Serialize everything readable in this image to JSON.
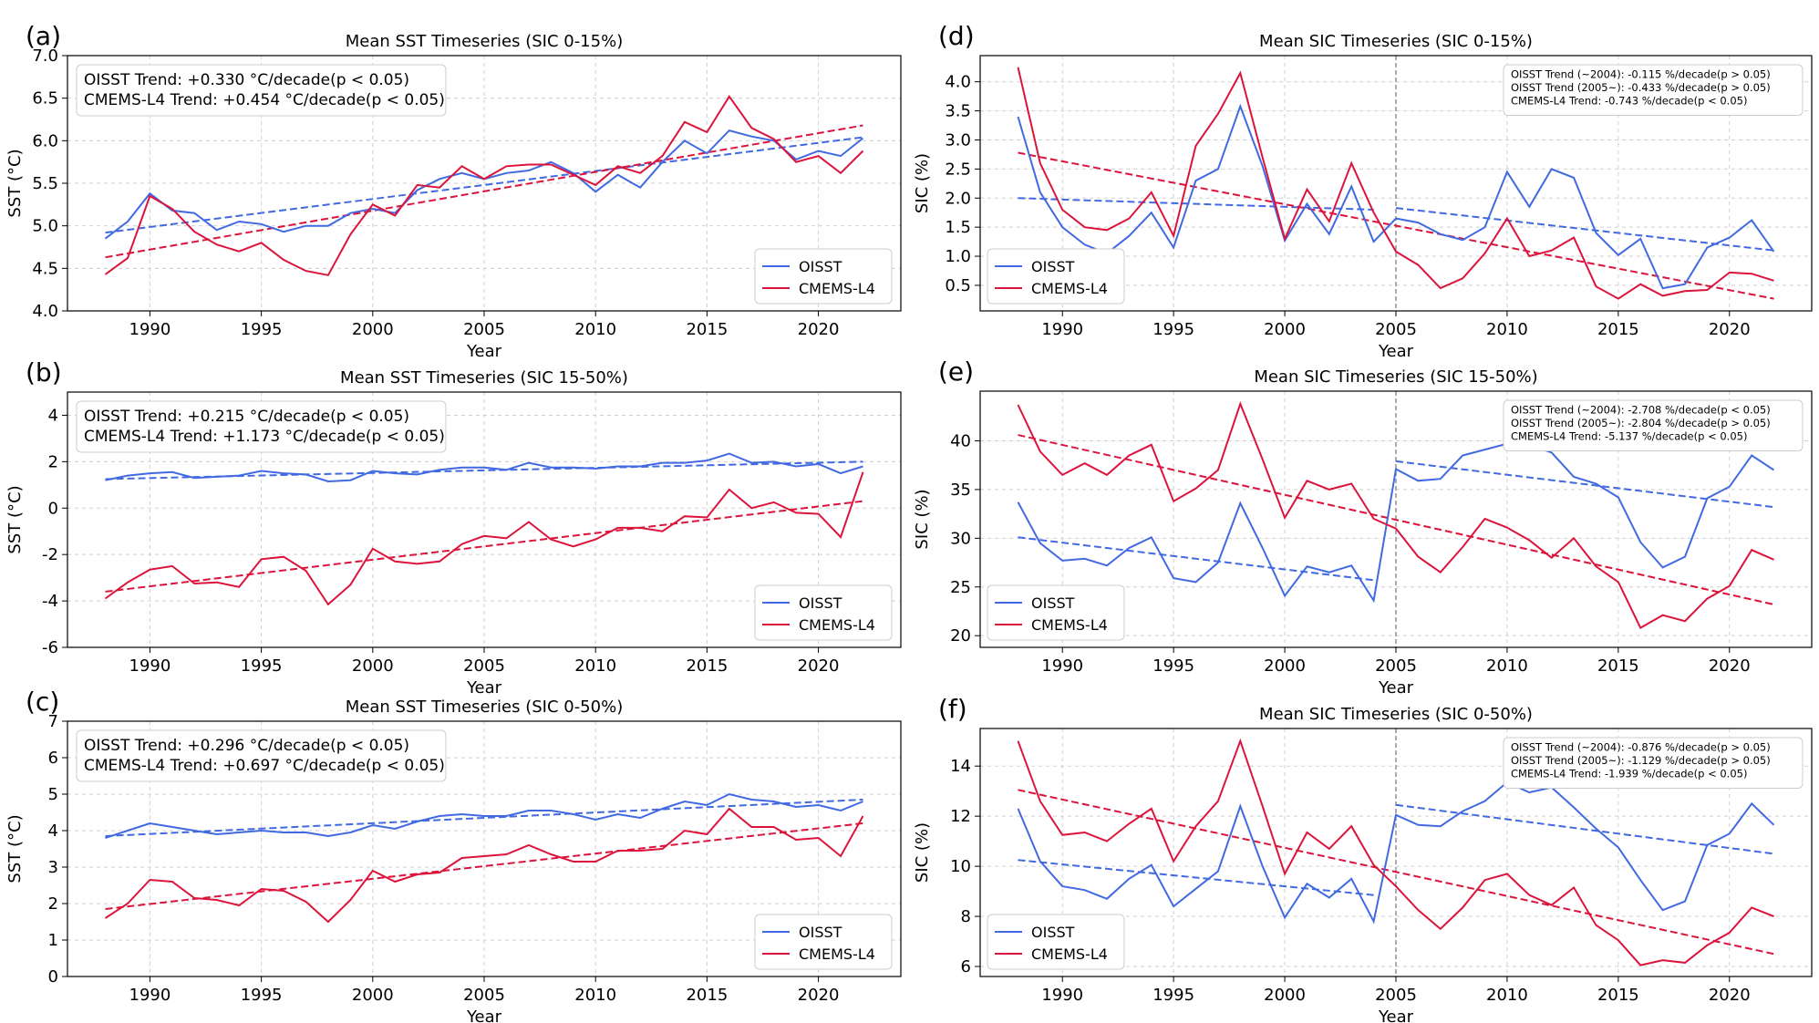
{
  "colors": {
    "oisst": "#4169e1",
    "cmems": "#dc143c",
    "grid": "#d0d0d0",
    "vline": "#808080"
  },
  "years": [
    1988,
    1989,
    1990,
    1991,
    1992,
    1993,
    1994,
    1995,
    1996,
    1997,
    1998,
    1999,
    2000,
    2001,
    2002,
    2003,
    2004,
    2005,
    2006,
    2007,
    2008,
    2009,
    2010,
    2011,
    2012,
    2013,
    2014,
    2015,
    2016,
    2017,
    2018,
    2019,
    2020,
    2021,
    2022
  ],
  "chart_data": [
    {
      "panel": "(a)",
      "type": "line",
      "title": "Mean SST Timeseries (SIC 0-15%)",
      "xlabel": "Year",
      "ylabel": "SST (°C)",
      "xlim": [
        1986.3,
        2023.7
      ],
      "ylim": [
        4.0,
        7.0
      ],
      "xticks": [
        1990,
        1995,
        2000,
        2005,
        2010,
        2015,
        2020
      ],
      "yticks": [
        4.0,
        4.5,
        5.0,
        5.5,
        6.0,
        6.5,
        7.0
      ],
      "ydec": 1,
      "legend": "lower-right",
      "annotation": "top-left",
      "annotation_lines": [
        "OISST Trend: +0.330 °C/decade(p < 0.05)",
        "CMEMS-L4 Trend: +0.454 °C/decade(p < 0.05)"
      ],
      "series": [
        {
          "name": "OISST",
          "color": "oisst",
          "values": [
            4.85,
            5.05,
            5.38,
            5.18,
            5.15,
            4.95,
            5.05,
            5.02,
            4.93,
            5.0,
            5.0,
            5.15,
            5.2,
            5.15,
            5.42,
            5.55,
            5.62,
            5.55,
            5.62,
            5.65,
            5.75,
            5.62,
            5.4,
            5.6,
            5.45,
            5.75,
            6.0,
            5.85,
            6.12,
            6.05,
            6.0,
            5.78,
            5.88,
            5.82,
            6.03
          ]
        },
        {
          "name": "CMEMS-L4",
          "color": "cmems",
          "values": [
            4.43,
            4.62,
            5.35,
            5.2,
            4.93,
            4.78,
            4.7,
            4.8,
            4.6,
            4.47,
            4.42,
            4.9,
            5.25,
            5.12,
            5.48,
            5.45,
            5.7,
            5.55,
            5.7,
            5.72,
            5.72,
            5.6,
            5.48,
            5.7,
            5.62,
            5.82,
            6.22,
            6.1,
            6.52,
            6.15,
            6.02,
            5.75,
            5.82,
            5.62,
            5.88
          ]
        }
      ],
      "trends": [
        {
          "color": "oisst",
          "x": [
            1988,
            2022
          ],
          "y": [
            4.92,
            6.04
          ]
        },
        {
          "color": "cmems",
          "x": [
            1988,
            2022
          ],
          "y": [
            4.63,
            6.18
          ]
        }
      ]
    },
    {
      "panel": "(b)",
      "type": "line",
      "title": "Mean SST Timeseries (SIC 15-50%)",
      "xlabel": "Year",
      "ylabel": "SST (°C)",
      "xlim": [
        1986.3,
        2023.7
      ],
      "ylim": [
        -6,
        5
      ],
      "xticks": [
        1990,
        1995,
        2000,
        2005,
        2010,
        2015,
        2020
      ],
      "yticks": [
        -6,
        -4,
        -2,
        0,
        2,
        4
      ],
      "ydec": 0,
      "legend": "lower-right",
      "annotation": "top-left",
      "annotation_lines": [
        "OISST Trend: +0.215 °C/decade(p < 0.05)",
        "CMEMS-L4 Trend: +1.173 °C/decade(p < 0.05)"
      ],
      "series": [
        {
          "name": "OISST",
          "color": "oisst",
          "values": [
            1.2,
            1.4,
            1.5,
            1.55,
            1.3,
            1.35,
            1.4,
            1.6,
            1.5,
            1.45,
            1.15,
            1.2,
            1.6,
            1.5,
            1.45,
            1.65,
            1.75,
            1.75,
            1.65,
            1.95,
            1.75,
            1.75,
            1.7,
            1.8,
            1.8,
            1.95,
            1.95,
            2.05,
            2.35,
            1.95,
            2.0,
            1.8,
            1.9,
            1.5,
            1.8
          ]
        },
        {
          "name": "CMEMS-L4",
          "color": "cmems",
          "values": [
            -3.9,
            -3.2,
            -2.65,
            -2.5,
            -3.25,
            -3.2,
            -3.4,
            -2.2,
            -2.1,
            -2.7,
            -4.15,
            -3.3,
            -1.75,
            -2.3,
            -2.4,
            -2.3,
            -1.55,
            -1.2,
            -1.3,
            -0.6,
            -1.35,
            -1.65,
            -1.35,
            -0.85,
            -0.85,
            -1.0,
            -0.35,
            -0.4,
            0.8,
            0.0,
            0.25,
            -0.2,
            -0.25,
            -1.25,
            1.55
          ]
        }
      ],
      "trends": [
        {
          "color": "oisst",
          "x": [
            1988,
            2022
          ],
          "y": [
            1.25,
            2.0
          ]
        },
        {
          "color": "cmems",
          "x": [
            1988,
            2022
          ],
          "y": [
            -3.6,
            0.3
          ]
        }
      ]
    },
    {
      "panel": "(c)",
      "type": "line",
      "title": "Mean SST Timeseries (SIC 0-50%)",
      "xlabel": "Year",
      "ylabel": "SST (°C)",
      "xlim": [
        1986.3,
        2023.7
      ],
      "ylim": [
        0,
        7
      ],
      "xticks": [
        1990,
        1995,
        2000,
        2005,
        2010,
        2015,
        2020
      ],
      "yticks": [
        0,
        1,
        2,
        3,
        4,
        5,
        6,
        7
      ],
      "ydec": 0,
      "legend": "lower-right",
      "annotation": "top-left",
      "annotation_lines": [
        "OISST Trend: +0.296 °C/decade(p < 0.05)",
        "CMEMS-L4 Trend: +0.697 °C/decade(p < 0.05)"
      ],
      "series": [
        {
          "name": "OISST",
          "color": "oisst",
          "values": [
            3.8,
            4.0,
            4.2,
            4.1,
            4.0,
            3.9,
            3.95,
            4.0,
            3.95,
            3.95,
            3.85,
            3.95,
            4.15,
            4.05,
            4.25,
            4.4,
            4.45,
            4.4,
            4.4,
            4.55,
            4.55,
            4.45,
            4.3,
            4.45,
            4.35,
            4.6,
            4.8,
            4.7,
            5.0,
            4.85,
            4.8,
            4.65,
            4.7,
            4.55,
            4.8
          ]
        },
        {
          "name": "CMEMS-L4",
          "color": "cmems",
          "values": [
            1.6,
            2.0,
            2.65,
            2.6,
            2.15,
            2.1,
            1.95,
            2.4,
            2.35,
            2.05,
            1.5,
            2.1,
            2.9,
            2.6,
            2.8,
            2.85,
            3.25,
            3.3,
            3.35,
            3.6,
            3.35,
            3.15,
            3.15,
            3.45,
            3.45,
            3.5,
            4.0,
            3.9,
            4.6,
            4.1,
            4.1,
            3.75,
            3.8,
            3.3,
            4.4
          ]
        }
      ],
      "trends": [
        {
          "color": "oisst",
          "x": [
            1988,
            2022
          ],
          "y": [
            3.85,
            4.85
          ]
        },
        {
          "color": "cmems",
          "x": [
            1988,
            2022
          ],
          "y": [
            1.85,
            4.2
          ]
        }
      ]
    },
    {
      "panel": "(d)",
      "type": "line",
      "title": "Mean SIC Timeseries (SIC 0-15%)",
      "xlabel": "Year",
      "ylabel": "SIC (%)",
      "xlim": [
        1986.3,
        2023.7
      ],
      "ylim": [
        0.06,
        4.45
      ],
      "xticks": [
        1990,
        1995,
        2000,
        2005,
        2010,
        2015,
        2020
      ],
      "yticks": [
        0.5,
        1.0,
        1.5,
        2.0,
        2.5,
        3.0,
        3.5,
        4.0
      ],
      "ydec": 1,
      "legend": "lower-left",
      "annotation": "top-right",
      "vline": 2005,
      "annotation_lines": [
        "OISST Trend (~2004): -0.115 %/decade(p > 0.05)",
        "OISST Trend (2005~): -0.433 %/decade(p > 0.05)",
        "CMEMS-L4 Trend: -0.743 %/decade(p < 0.05)"
      ],
      "series": [
        {
          "name": "OISST",
          "color": "oisst",
          "values": [
            3.4,
            2.1,
            1.5,
            1.2,
            1.05,
            1.35,
            1.75,
            1.15,
            2.3,
            2.5,
            3.58,
            2.55,
            1.27,
            1.9,
            1.38,
            2.2,
            1.25,
            1.65,
            1.58,
            1.38,
            1.28,
            1.5,
            2.45,
            1.85,
            2.5,
            2.35,
            1.4,
            1.02,
            1.3,
            0.45,
            0.52,
            1.15,
            1.32,
            1.62,
            1.08
          ]
        },
        {
          "name": "CMEMS-L4",
          "color": "cmems",
          "values": [
            4.25,
            2.6,
            1.8,
            1.5,
            1.45,
            1.65,
            2.1,
            1.35,
            2.9,
            3.45,
            4.15,
            2.7,
            1.3,
            2.15,
            1.6,
            2.6,
            1.75,
            1.08,
            0.85,
            0.45,
            0.62,
            1.05,
            1.65,
            1.0,
            1.1,
            1.32,
            0.48,
            0.27,
            0.52,
            0.32,
            0.4,
            0.42,
            0.72,
            0.7,
            0.58
          ]
        }
      ],
      "trends": [
        {
          "color": "oisst",
          "x": [
            1988,
            2004
          ],
          "y": [
            2.0,
            1.8
          ]
        },
        {
          "color": "oisst",
          "x": [
            2005,
            2022
          ],
          "y": [
            1.83,
            1.1
          ]
        },
        {
          "color": "cmems",
          "x": [
            1988,
            2022
          ],
          "y": [
            2.78,
            0.27
          ]
        }
      ]
    },
    {
      "panel": "(e)",
      "type": "line",
      "title": "Mean SIC Timeseries (SIC 15-50%)",
      "xlabel": "Year",
      "ylabel": "SIC (%)",
      "xlim": [
        1986.3,
        2023.7
      ],
      "ylim": [
        18.8,
        45.1
      ],
      "xticks": [
        1990,
        1995,
        2000,
        2005,
        2010,
        2015,
        2020
      ],
      "yticks": [
        20,
        25,
        30,
        35,
        40
      ],
      "ydec": 0,
      "legend": "lower-left",
      "annotation": "top-right",
      "vline": 2005,
      "annotation_lines": [
        "OISST Trend (~2004): -2.708 %/decade(p < 0.05)",
        "OISST Trend (2005~): -2.804 %/decade(p > 0.05)",
        "CMEMS-L4 Trend: -5.137 %/decade(p < 0.05)"
      ],
      "series": [
        {
          "name": "OISST",
          "color": "oisst",
          "values": [
            33.7,
            29.5,
            27.7,
            27.9,
            27.2,
            29.0,
            30.1,
            25.9,
            25.5,
            27.5,
            33.6,
            29.0,
            24.1,
            27.1,
            26.5,
            27.2,
            23.6,
            37.1,
            35.9,
            36.1,
            38.5,
            39.1,
            39.7,
            39.6,
            38.8,
            36.3,
            35.6,
            34.2,
            29.6,
            27.0,
            28.1,
            34.1,
            35.3,
            38.5,
            37.0
          ]
        },
        {
          "name": "CMEMS-L4",
          "color": "cmems",
          "values": [
            43.7,
            38.9,
            36.5,
            37.7,
            36.5,
            38.5,
            39.6,
            33.8,
            35.1,
            37.0,
            43.8,
            38.1,
            32.1,
            35.9,
            35.0,
            35.6,
            32.0,
            31.0,
            28.1,
            26.5,
            29.1,
            32.0,
            31.1,
            29.8,
            28.0,
            30.0,
            27.1,
            25.5,
            20.8,
            22.1,
            21.5,
            23.8,
            25.1,
            28.8,
            27.8
          ]
        }
      ],
      "trends": [
        {
          "color": "oisst",
          "x": [
            1988,
            2004
          ],
          "y": [
            30.1,
            25.7
          ]
        },
        {
          "color": "oisst",
          "x": [
            2005,
            2022
          ],
          "y": [
            37.9,
            33.2
          ]
        },
        {
          "color": "cmems",
          "x": [
            1988,
            2022
          ],
          "y": [
            40.6,
            23.2
          ]
        }
      ]
    },
    {
      "panel": "(f)",
      "type": "line",
      "title": "Mean SIC Timeseries (SIC 0-50%)",
      "xlabel": "Year",
      "ylabel": "SIC (%)",
      "xlim": [
        1986.3,
        2023.7
      ],
      "ylim": [
        5.6,
        15.5
      ],
      "xticks": [
        1990,
        1995,
        2000,
        2005,
        2010,
        2015,
        2020
      ],
      "yticks": [
        6,
        8,
        10,
        12,
        14
      ],
      "ydec": 0,
      "legend": "lower-left",
      "annotation": "top-right",
      "vline": 2005,
      "annotation_lines": [
        "OISST Trend (~2004): -0.876 %/decade(p > 0.05)",
        "OISST Trend (2005~): -1.129 %/decade(p > 0.05)",
        "CMEMS-L4 Trend: -1.939 %/decade(p < 0.05)"
      ],
      "series": [
        {
          "name": "OISST",
          "color": "oisst",
          "values": [
            12.3,
            10.2,
            9.2,
            9.05,
            8.7,
            9.5,
            10.05,
            8.4,
            9.1,
            9.8,
            12.4,
            10.0,
            7.95,
            9.3,
            8.75,
            9.5,
            7.8,
            12.05,
            11.65,
            11.6,
            12.2,
            12.6,
            13.35,
            12.95,
            13.15,
            12.35,
            11.5,
            10.75,
            9.45,
            8.25,
            8.6,
            10.85,
            11.3,
            12.5,
            11.65
          ]
        },
        {
          "name": "CMEMS-L4",
          "color": "cmems",
          "values": [
            15.0,
            12.6,
            11.25,
            11.35,
            11.0,
            11.7,
            12.3,
            10.2,
            11.6,
            12.6,
            15.0,
            12.4,
            9.7,
            11.35,
            10.7,
            11.6,
            10.05,
            9.2,
            8.25,
            7.5,
            8.35,
            9.45,
            9.7,
            8.85,
            8.45,
            9.15,
            7.65,
            7.05,
            6.05,
            6.25,
            6.15,
            6.85,
            7.35,
            8.35,
            8.0
          ]
        }
      ],
      "trends": [
        {
          "color": "oisst",
          "x": [
            1988,
            2004
          ],
          "y": [
            10.25,
            8.85
          ]
        },
        {
          "color": "oisst",
          "x": [
            2005,
            2022
          ],
          "y": [
            12.45,
            10.5
          ]
        },
        {
          "color": "cmems",
          "x": [
            1988,
            2022
          ],
          "y": [
            13.05,
            6.5
          ]
        }
      ]
    }
  ]
}
